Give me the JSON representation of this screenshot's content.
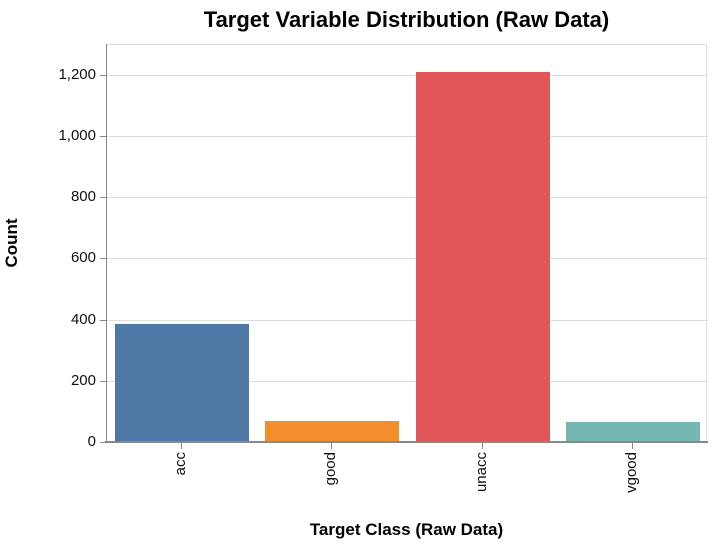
{
  "chart_data": {
    "type": "bar",
    "title": "Target Variable Distribution (Raw Data)",
    "xlabel": "Target Class (Raw Data)",
    "ylabel": "Count",
    "categories": [
      "acc",
      "good",
      "unacc",
      "vgood"
    ],
    "values": [
      384,
      69,
      1210,
      65
    ],
    "colors": [
      "#4E79A7",
      "#F28E2B",
      "#E15759",
      "#76B7B2"
    ],
    "yticks": [
      0,
      200,
      400,
      600,
      800,
      1000,
      1200
    ],
    "ytick_labels": [
      "0",
      "200",
      "400",
      "600",
      "800",
      "1,000",
      "1,200"
    ],
    "ylim": [
      0,
      1300
    ],
    "grid": true,
    "legend": false,
    "grid_color": "#dddddd",
    "axis_color": "#888888",
    "background_color": "#ffffff"
  }
}
